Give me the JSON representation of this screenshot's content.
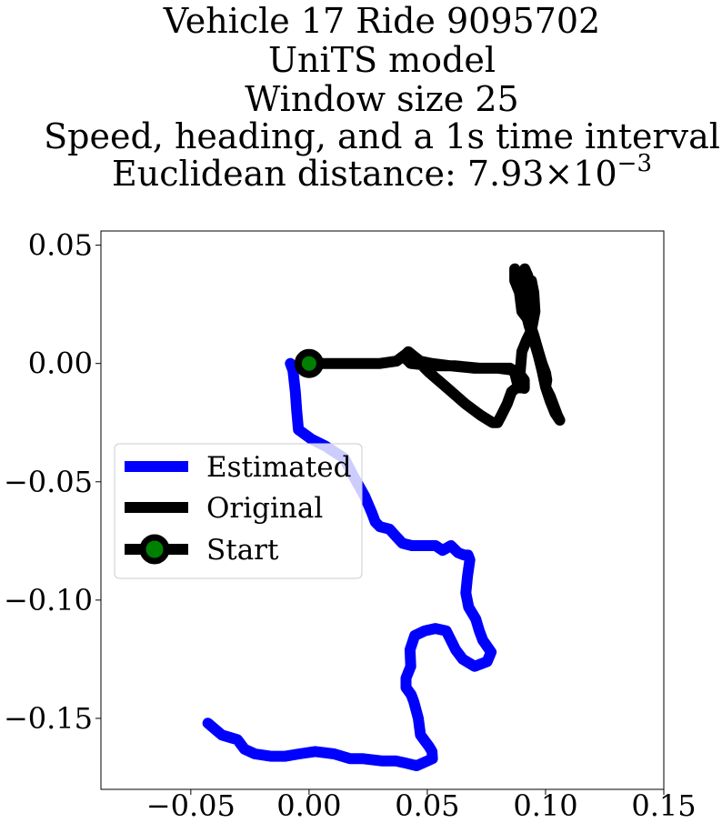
{
  "chart_data": {
    "type": "line",
    "title_lines": [
      "Vehicle 17 Ride 9095702",
      "UniTS model",
      "Window size 25",
      "Speed, heading, and a 1s time interval"
    ],
    "distance_label": "Euclidean distance: ",
    "distance_mantissa": "7.93",
    "distance_times": "×",
    "distance_base": "10",
    "distance_exponent": "−3",
    "xlabel": "",
    "ylabel": "",
    "xlim": [
      -0.088,
      0.15
    ],
    "ylim": [
      -0.18,
      0.056
    ],
    "x_ticks": [
      -0.05,
      0.0,
      0.05,
      0.1,
      0.15
    ],
    "x_tick_labels": [
      "−0.05",
      "0.00",
      "0.05",
      "0.10",
      "0.15"
    ],
    "y_ticks": [
      0.05,
      0.0,
      -0.05,
      -0.1,
      -0.15
    ],
    "y_tick_labels": [
      "0.05",
      "0.00",
      "−0.05",
      "−0.10",
      "−0.15"
    ],
    "grid": false,
    "legend_position": "center-left",
    "series": [
      {
        "name": "Estimated",
        "color": "#0000ff",
        "points": [
          [
            -0.0079,
            0.0
          ],
          [
            -0.0068,
            -0.003
          ],
          [
            -0.0058,
            -0.012
          ],
          [
            -0.0052,
            -0.02
          ],
          [
            -0.0045,
            -0.028
          ],
          [
            0.001,
            -0.032
          ],
          [
            0.0071,
            -0.035
          ],
          [
            0.0148,
            -0.04
          ],
          [
            0.019,
            -0.048
          ],
          [
            0.0235,
            -0.056
          ],
          [
            0.0265,
            -0.063
          ],
          [
            0.028,
            -0.067
          ],
          [
            0.03,
            -0.069
          ],
          [
            0.034,
            -0.07
          ],
          [
            0.0367,
            -0.073
          ],
          [
            0.0395,
            -0.076
          ],
          [
            0.0435,
            -0.077
          ],
          [
            0.0478,
            -0.077
          ],
          [
            0.0535,
            -0.077
          ],
          [
            0.0565,
            -0.079
          ],
          [
            0.06,
            -0.077
          ],
          [
            0.063,
            -0.08
          ],
          [
            0.0656,
            -0.081
          ],
          [
            0.0672,
            -0.081
          ],
          [
            0.068,
            -0.083
          ],
          [
            0.067,
            -0.09
          ],
          [
            0.0663,
            -0.097
          ],
          [
            0.0675,
            -0.103
          ],
          [
            0.0705,
            -0.108
          ],
          [
            0.072,
            -0.113
          ],
          [
            0.0735,
            -0.117
          ],
          [
            0.077,
            -0.122
          ],
          [
            0.0753,
            -0.126
          ],
          [
            0.07,
            -0.128
          ],
          [
            0.065,
            -0.125
          ],
          [
            0.062,
            -0.121
          ],
          [
            0.06,
            -0.117
          ],
          [
            0.058,
            -0.113
          ],
          [
            0.0534,
            -0.112
          ],
          [
            0.0489,
            -0.113
          ],
          [
            0.0447,
            -0.115
          ],
          [
            0.0427,
            -0.121
          ],
          [
            0.043,
            -0.128
          ],
          [
            0.041,
            -0.133
          ],
          [
            0.041,
            -0.137
          ],
          [
            0.0432,
            -0.14
          ],
          [
            0.0443,
            -0.143
          ],
          [
            0.0462,
            -0.15
          ],
          [
            0.0471,
            -0.157
          ],
          [
            0.0508,
            -0.162
          ],
          [
            0.052,
            -0.164
          ],
          [
            0.0522,
            -0.167
          ],
          [
            0.05,
            -0.168
          ],
          [
            0.0455,
            -0.17
          ],
          [
            0.0414,
            -0.169
          ],
          [
            0.0367,
            -0.168
          ],
          [
            0.031,
            -0.168
          ],
          [
            0.0225,
            -0.167
          ],
          [
            0.0173,
            -0.167
          ],
          [
            0.0106,
            -0.165
          ],
          [
            0.0026,
            -0.164
          ],
          [
            -0.0041,
            -0.165
          ],
          [
            -0.01,
            -0.166
          ],
          [
            -0.0163,
            -0.166
          ],
          [
            -0.0229,
            -0.165
          ],
          [
            -0.0273,
            -0.163
          ],
          [
            -0.0303,
            -0.159
          ],
          [
            -0.0369,
            -0.157
          ],
          [
            -0.0428,
            -0.152
          ]
        ]
      },
      {
        "name": "Original",
        "color": "#000000",
        "points": [
          [
            0.0,
            0.0
          ],
          [
            0.01,
            0.0
          ],
          [
            0.02,
            0.0
          ],
          [
            0.03,
            0.0
          ],
          [
            0.037,
            0.001
          ],
          [
            0.041,
            0.004
          ],
          [
            0.0444,
            0.003
          ],
          [
            0.047,
            0.001
          ],
          [
            0.052,
            0.0
          ],
          [
            0.06,
            -0.001
          ],
          [
            0.07,
            -0.002
          ],
          [
            0.08,
            -0.002
          ],
          [
            0.088,
            -0.003
          ],
          [
            0.091,
            -0.007
          ],
          [
            0.091,
            -0.0105
          ],
          [
            0.088,
            -0.01
          ],
          [
            0.0856,
            -0.012
          ],
          [
            0.0838,
            -0.017
          ],
          [
            0.0813,
            -0.022
          ],
          [
            0.0797,
            -0.025
          ],
          [
            0.0776,
            -0.025
          ],
          [
            0.0727,
            -0.022
          ],
          [
            0.066,
            -0.017
          ],
          [
            0.058,
            -0.01
          ],
          [
            0.051,
            -0.004
          ],
          [
            0.047,
            0.0
          ],
          [
            0.0444,
            0.003
          ],
          [
            0.042,
            0.005
          ],
          [
            0.04,
            0.003
          ],
          [
            0.043,
            0.0
          ],
          [
            0.052,
            -0.001
          ],
          [
            0.062,
            -0.001
          ],
          [
            0.072,
            -0.002
          ],
          [
            0.08,
            -0.002
          ],
          [
            0.085,
            -0.002
          ],
          [
            0.087,
            -0.004
          ],
          [
            0.088,
            -0.008
          ],
          [
            0.089,
            -0.007
          ],
          [
            0.09,
            0.005
          ],
          [
            0.092,
            0.01
          ],
          [
            0.094,
            0.014
          ],
          [
            0.0955,
            0.022
          ],
          [
            0.095,
            0.03
          ],
          [
            0.094,
            0.035
          ],
          [
            0.092,
            0.03
          ],
          [
            0.09,
            0.035
          ],
          [
            0.087,
            0.04
          ],
          [
            0.087,
            0.035
          ],
          [
            0.089,
            0.03
          ],
          [
            0.09,
            0.022
          ],
          [
            0.093,
            0.018
          ],
          [
            0.095,
            0.012
          ],
          [
            0.097,
            0.005
          ],
          [
            0.0985,
            0.0
          ],
          [
            0.1,
            -0.004
          ],
          [
            0.1005,
            -0.007
          ],
          [
            0.1,
            -0.01
          ],
          [
            0.102,
            -0.014
          ],
          [
            0.1035,
            -0.018
          ],
          [
            0.105,
            -0.022
          ],
          [
            0.106,
            -0.024
          ],
          [
            0.104,
            -0.021
          ],
          [
            0.102,
            -0.016
          ],
          [
            0.1,
            -0.01
          ],
          [
            0.0985,
            -0.003
          ],
          [
            0.097,
            0.003
          ],
          [
            0.095,
            0.01
          ],
          [
            0.093,
            0.016
          ],
          [
            0.0915,
            0.022
          ],
          [
            0.092,
            0.03
          ],
          [
            0.0925,
            0.037
          ],
          [
            0.0912,
            0.04
          ],
          [
            0.09,
            0.036
          ]
        ]
      }
    ],
    "start": {
      "name": "Start",
      "point": [
        0.0,
        0.0
      ],
      "marker_fill": "#008000",
      "marker_edge": "#000000"
    }
  }
}
